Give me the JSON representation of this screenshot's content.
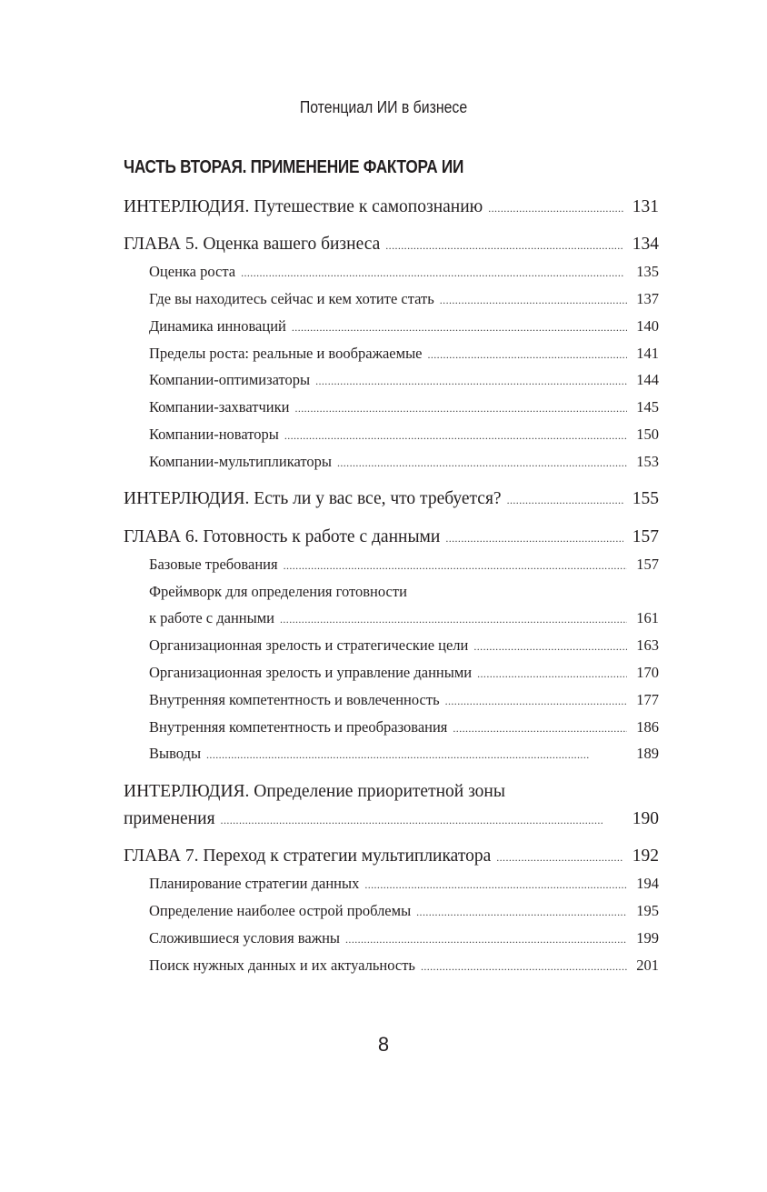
{
  "running_header": "Потенциал ИИ в бизнесе",
  "part_title": "ЧАСТЬ ВТОРАЯ. ПРИМЕНЕНИЕ ФАКТОРА ИИ",
  "entries": [
    {
      "title": "ИНТЕРЛЮДИЯ. Путешествие к самопознанию",
      "page": "131"
    },
    {
      "title": "ГЛАВА 5. Оценка вашего бизнеса",
      "page": "134"
    },
    {
      "title": "Оценка роста",
      "page": "135"
    },
    {
      "title": "Где вы находитесь сейчас и кем хотите стать",
      "page": "137"
    },
    {
      "title": "Динамика инноваций",
      "page": "140"
    },
    {
      "title": "Пределы роста: реальные и воображаемые",
      "page": "141"
    },
    {
      "title": "Компании-оптимизаторы",
      "page": "144"
    },
    {
      "title": "Компании-захватчики",
      "page": "145"
    },
    {
      "title": "Компании-новаторы",
      "page": "150"
    },
    {
      "title": "Компании-мультипликаторы",
      "page": "153"
    },
    {
      "title": "ИНТЕРЛЮДИЯ. Есть ли у вас все, что требуется?",
      "page": "155"
    },
    {
      "title": "ГЛАВА 6. Готовность к работе с данными",
      "page": "157"
    },
    {
      "title": "Базовые требования",
      "page": "157"
    },
    {
      "title_line1": "Фреймворк для определения готовности",
      "title": "к работе с данными",
      "page": "161"
    },
    {
      "title": "Организационная зрелость и стратегические цели",
      "page": "163"
    },
    {
      "title": "Организационная зрелость и управление данными",
      "page": "170"
    },
    {
      "title": "Внутренняя компетентность и вовлеченность",
      "page": "177"
    },
    {
      "title": "Внутренняя компетентность и преобразования",
      "page": "186"
    },
    {
      "title": "Выводы",
      "page": "189"
    },
    {
      "title_line1": "ИНТЕРЛЮДИЯ. Определение приоритетной зоны",
      "title": "применения",
      "page": "190"
    },
    {
      "title": "ГЛАВА 7. Переход к стратегии мультипликатора",
      "page": "192"
    },
    {
      "title": "Планирование стратегии данных",
      "page": "194"
    },
    {
      "title": "Определение наиболее острой проблемы",
      "page": "195"
    },
    {
      "title": "Сложившиеся условия важны",
      "page": "199"
    },
    {
      "title": "Поиск нужных данных и их актуальность",
      "page": "201"
    }
  ],
  "page_number": "8"
}
